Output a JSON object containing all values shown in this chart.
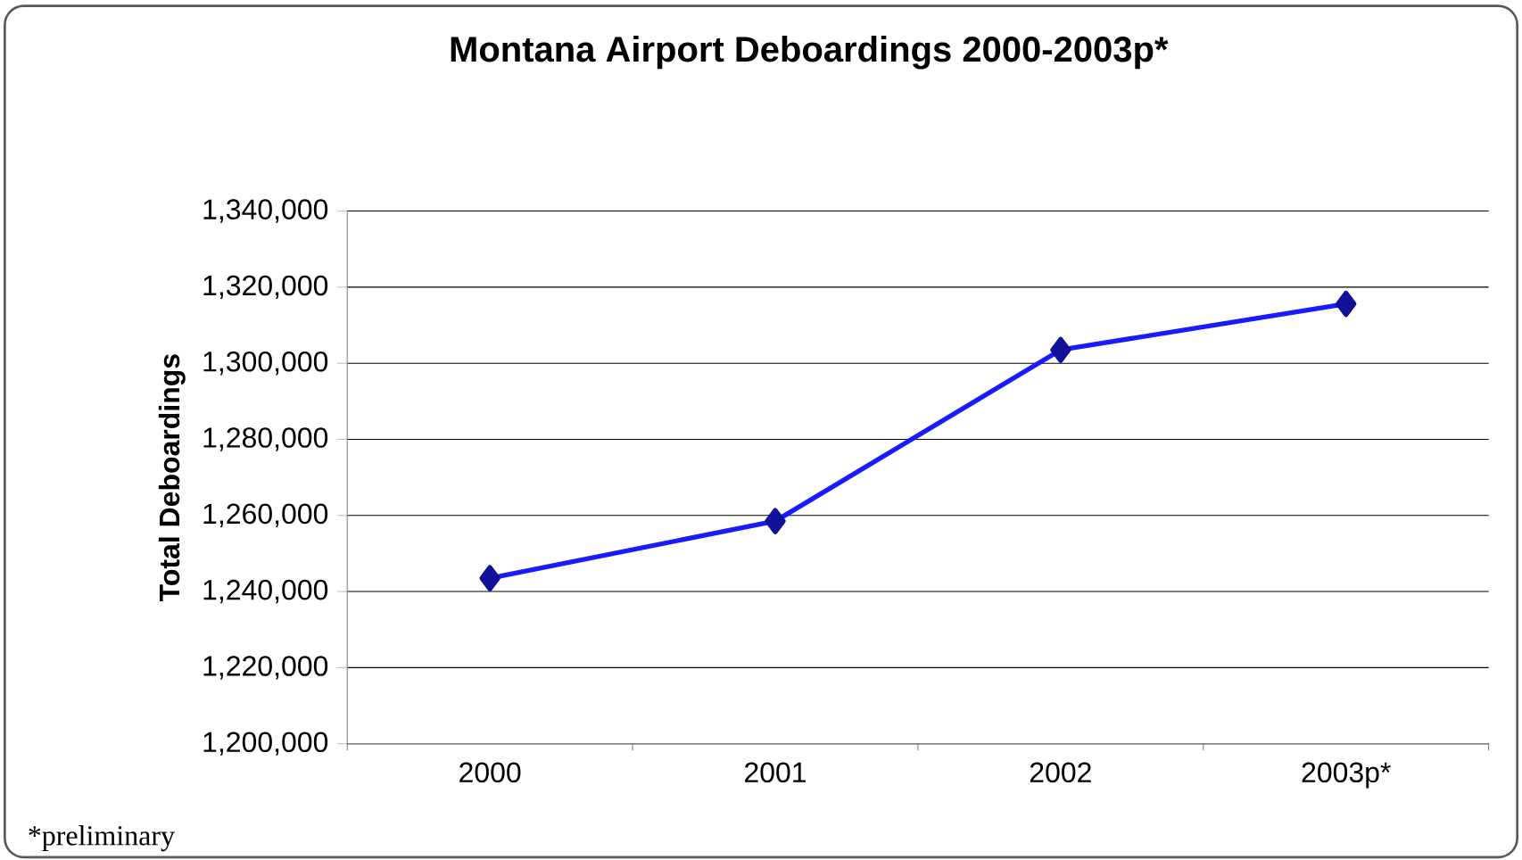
{
  "chart_data": {
    "type": "line",
    "title": "Montana Airport Deboardings 2000-2003p*",
    "ylabel": "Total Deboardings",
    "categories": [
      "2000",
      "2001",
      "2002",
      "2003p*"
    ],
    "series": [
      {
        "color": "#1a1aff",
        "values": [
          1243500,
          1258500,
          1303500,
          1315600
        ]
      }
    ],
    "marker": "diamond",
    "line_style": "solid",
    "ylim": [
      1200000,
      1340000
    ],
    "yticks": [
      {
        "value": 1200000,
        "label": "1,200,000"
      },
      {
        "value": 1220000,
        "label": "1,220,000"
      },
      {
        "value": 1240000,
        "label": "1,240,000"
      },
      {
        "value": 1260000,
        "label": "1,260,000"
      },
      {
        "value": 1280000,
        "label": "1,280,000"
      },
      {
        "value": 1300000,
        "label": "1,300,000"
      },
      {
        "value": 1320000,
        "label": "1,320,000"
      },
      {
        "value": 1340000,
        "label": "1,340,000"
      }
    ],
    "grid": "y",
    "legend": false,
    "annotations": [
      "*preliminary"
    ]
  }
}
